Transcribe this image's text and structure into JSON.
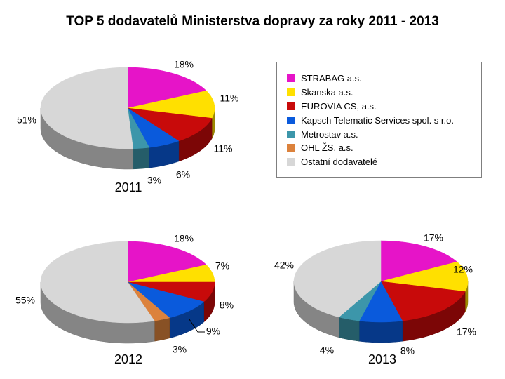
{
  "title": "TOP 5 dodavatelů Ministerstva dopravy za roky 2011 - 2013",
  "legend": {
    "items": [
      {
        "label": "STRABAG a.s.",
        "color": "#e614c8"
      },
      {
        "label": "Skanska a.s.",
        "color": "#ffe000"
      },
      {
        "label": "EUROVIA CS, a.s.",
        "color": "#c80a0a"
      },
      {
        "label": "Kapsch Telematic Services spol. s r.o.",
        "color": "#0a5adc"
      },
      {
        "label": "Metrostav a.s.",
        "color": "#3c96aa"
      },
      {
        "label": "OHL ŽS, a.s.",
        "color": "#dc823c"
      },
      {
        "label": "Ostatní dodavatelé",
        "color": "#d7d7d7"
      }
    ]
  },
  "chart_data": [
    {
      "type": "pie",
      "title": "2011",
      "series": [
        {
          "name": "STRABAG a.s.",
          "value": 18,
          "label": "18%"
        },
        {
          "name": "Skanska a.s.",
          "value": 11,
          "label": "11%"
        },
        {
          "name": "EUROVIA CS, a.s.",
          "value": 11,
          "label": "11%"
        },
        {
          "name": "Kapsch Telematic Services spol. s r.o.",
          "value": 6,
          "label": "6%"
        },
        {
          "name": "Metrostav a.s.",
          "value": 3,
          "label": "3%"
        },
        {
          "name": "Ostatní dodavatelé",
          "value": 51,
          "label": "51%"
        }
      ]
    },
    {
      "type": "pie",
      "title": "2012",
      "series": [
        {
          "name": "STRABAG a.s.",
          "value": 18,
          "label": "18%"
        },
        {
          "name": "Skanska a.s.",
          "value": 7,
          "label": "7%"
        },
        {
          "name": "EUROVIA CS, a.s.",
          "value": 8,
          "label": "8%"
        },
        {
          "name": "Kapsch Telematic Services spol. s r.o.",
          "value": 9,
          "label": "9%"
        },
        {
          "name": "OHL ŽS, a.s.",
          "value": 3,
          "label": "3%"
        },
        {
          "name": "Ostatní dodavatelé",
          "value": 55,
          "label": "55%"
        }
      ]
    },
    {
      "type": "pie",
      "title": "2013",
      "series": [
        {
          "name": "STRABAG a.s.",
          "value": 17,
          "label": "17%"
        },
        {
          "name": "Skanska a.s.",
          "value": 12,
          "label": "12%"
        },
        {
          "name": "EUROVIA CS, a.s.",
          "value": 17,
          "label": "17%"
        },
        {
          "name": "Kapsch Telematic Services spol. s r.o.",
          "value": 8,
          "label": "8%"
        },
        {
          "name": "Metrostav a.s.",
          "value": 4,
          "label": "4%"
        },
        {
          "name": "Ostatní dodavatelé",
          "value": 42,
          "label": "42%"
        }
      ]
    }
  ]
}
